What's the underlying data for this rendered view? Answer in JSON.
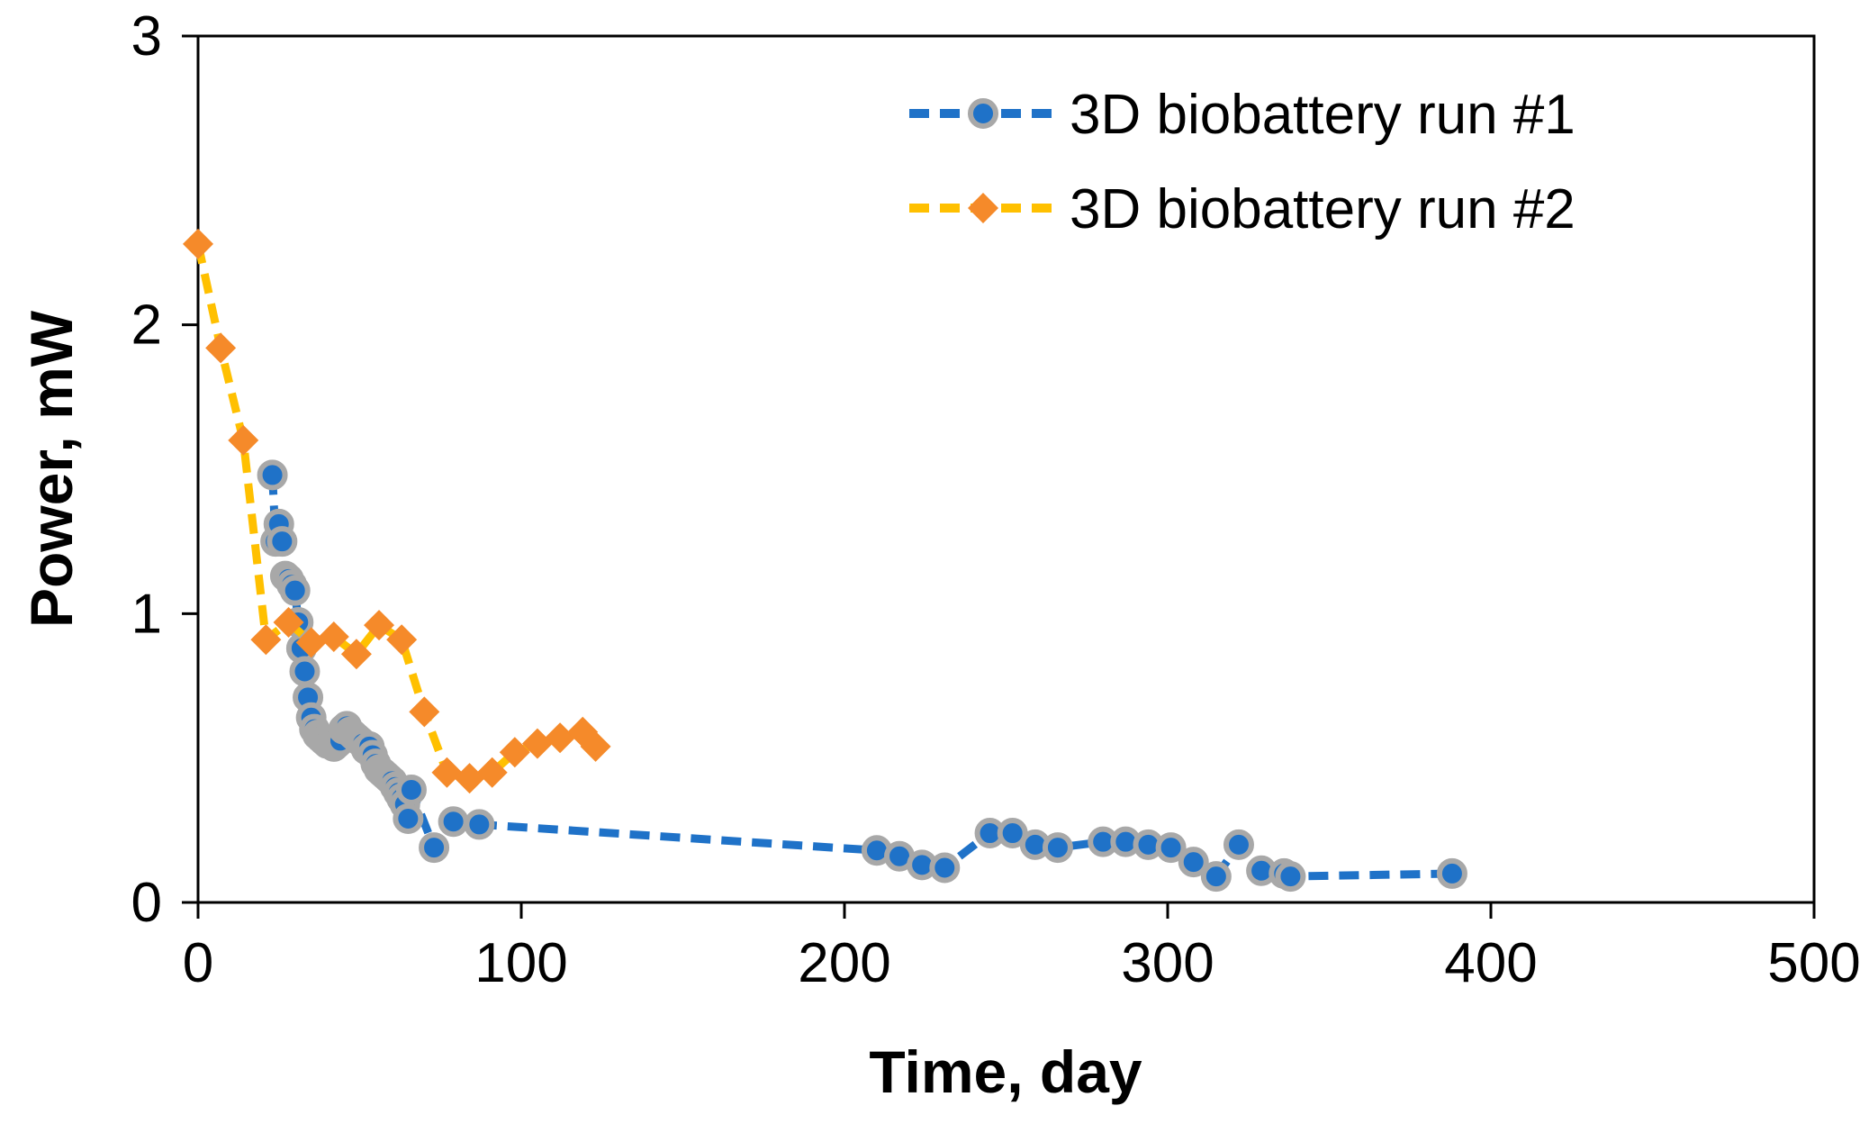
{
  "chart_data": {
    "type": "line",
    "title": "",
    "xlabel": "Time, day",
    "ylabel": "Power, mW",
    "xlim": [
      0,
      500
    ],
    "ylim": [
      0,
      3
    ],
    "xticks": [
      0,
      100,
      200,
      300,
      400,
      500
    ],
    "yticks": [
      0,
      1,
      2,
      3
    ],
    "x_tick_labels": [
      "0",
      "100",
      "200",
      "300",
      "400",
      "500"
    ],
    "y_tick_labels": [
      "0",
      "1",
      "2",
      "3"
    ],
    "grid": false,
    "legend_position": "top-right",
    "series": [
      {
        "name": "3D biobattery run #1",
        "line_color": "#1f72c8",
        "marker": "circle",
        "marker_fill": "#1f72c8",
        "marker_edge": "#a8a8a8",
        "line_style": "dashed",
        "x": [
          23,
          24,
          25,
          26,
          27,
          28,
          29,
          30,
          31,
          32,
          33,
          34,
          35,
          36,
          37,
          38,
          39,
          40,
          41,
          42,
          43,
          44,
          45,
          46,
          47,
          48,
          49,
          50,
          51,
          52,
          53,
          54,
          55,
          56,
          57,
          58,
          59,
          60,
          61,
          62,
          63,
          64,
          65,
          66,
          73,
          79,
          87,
          210,
          217,
          224,
          231,
          245,
          252,
          259,
          266,
          280,
          287,
          294,
          301,
          308,
          315,
          322,
          329,
          336,
          338,
          388
        ],
        "y": [
          1.48,
          1.25,
          1.31,
          1.25,
          1.13,
          1.12,
          1.1,
          1.08,
          0.97,
          0.88,
          0.8,
          0.71,
          0.64,
          0.6,
          0.58,
          0.57,
          0.56,
          0.55,
          0.55,
          0.54,
          0.55,
          0.56,
          0.6,
          0.61,
          0.59,
          0.58,
          0.57,
          0.56,
          0.55,
          0.53,
          0.54,
          0.51,
          0.48,
          0.46,
          0.45,
          0.44,
          0.43,
          0.42,
          0.4,
          0.38,
          0.36,
          0.34,
          0.29,
          0.39,
          0.19,
          0.28,
          0.27,
          0.18,
          0.16,
          0.13,
          0.12,
          0.24,
          0.24,
          0.2,
          0.19,
          0.21,
          0.21,
          0.2,
          0.19,
          0.14,
          0.09,
          0.2,
          0.11,
          0.1,
          0.09,
          0.1
        ]
      },
      {
        "name": "3D biobattery run #2",
        "line_color": "#ffc000",
        "marker": "diamond",
        "marker_fill": "#f58a2a",
        "marker_edge": "#f58a2a",
        "line_style": "dashed",
        "x": [
          0,
          7,
          14,
          21,
          28,
          35,
          42,
          49,
          56,
          63,
          70,
          77,
          84,
          91,
          98,
          105,
          112,
          119,
          123
        ],
        "y": [
          2.28,
          1.92,
          1.6,
          0.91,
          0.97,
          0.9,
          0.92,
          0.86,
          0.96,
          0.91,
          0.66,
          0.45,
          0.43,
          0.45,
          0.52,
          0.55,
          0.57,
          0.59,
          0.54
        ]
      }
    ]
  }
}
